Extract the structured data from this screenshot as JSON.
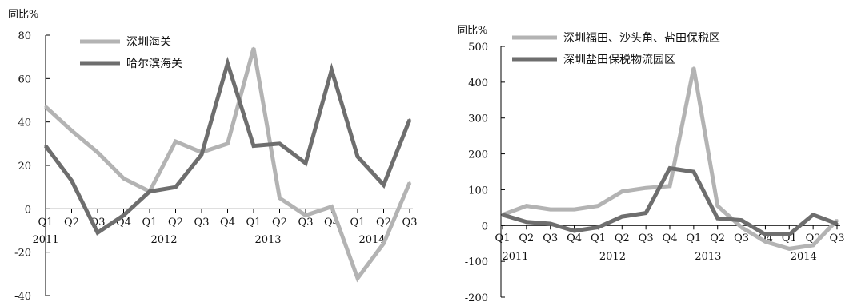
{
  "chart_data": [
    {
      "type": "line",
      "ylabel": "同比%",
      "ylim": [
        -40,
        80
      ],
      "yticks": [
        -40,
        -20,
        0,
        20,
        40,
        60,
        80
      ],
      "grid": false,
      "legend_position": "top",
      "categories": [
        "Q1",
        "Q2",
        "Q3",
        "Q4",
        "Q1",
        "Q2",
        "Q3",
        "Q4",
        "Q1",
        "Q2",
        "Q3",
        "Q4",
        "Q1",
        "Q2",
        "Q3"
      ],
      "years": [
        "2011",
        "2012",
        "2013",
        "2014"
      ],
      "series": [
        {
          "name": "深圳海关",
          "color": "#b3b3b3",
          "values": [
            47,
            36,
            26,
            14,
            8,
            31,
            26,
            30,
            74,
            5,
            -3,
            1,
            -32,
            -16,
            12
          ]
        },
        {
          "name": "哈尔滨海关",
          "color": "#6e6e6e",
          "values": [
            29,
            13,
            -11,
            -3,
            8,
            10,
            25,
            67,
            29,
            30,
            21,
            64,
            24,
            11,
            41
          ]
        }
      ]
    },
    {
      "type": "line",
      "ylabel": "同比%",
      "ylim": [
        -200,
        500
      ],
      "yticks": [
        -200,
        -100,
        0,
        100,
        200,
        300,
        400,
        500
      ],
      "grid": false,
      "legend_position": "top",
      "categories": [
        "Q1",
        "Q2",
        "Q3",
        "Q4",
        "Q1",
        "Q2",
        "Q3",
        "Q4",
        "Q1",
        "Q2",
        "Q3",
        "Q4",
        "Q1",
        "Q2",
        "Q3"
      ],
      "years": [
        "2011",
        "2012",
        "2013",
        "2014"
      ],
      "series": [
        {
          "name": "深圳福田、沙头角、盐田保税区",
          "color": "#b3b3b3",
          "values": [
            30,
            55,
            45,
            45,
            55,
            95,
            105,
            110,
            440,
            55,
            -5,
            -45,
            -65,
            -55,
            15
          ]
        },
        {
          "name": "深圳盐田保税物流园区",
          "color": "#6e6e6e",
          "values": [
            30,
            10,
            5,
            -15,
            -5,
            25,
            35,
            160,
            150,
            20,
            15,
            -25,
            -25,
            30,
            5
          ]
        }
      ]
    }
  ]
}
